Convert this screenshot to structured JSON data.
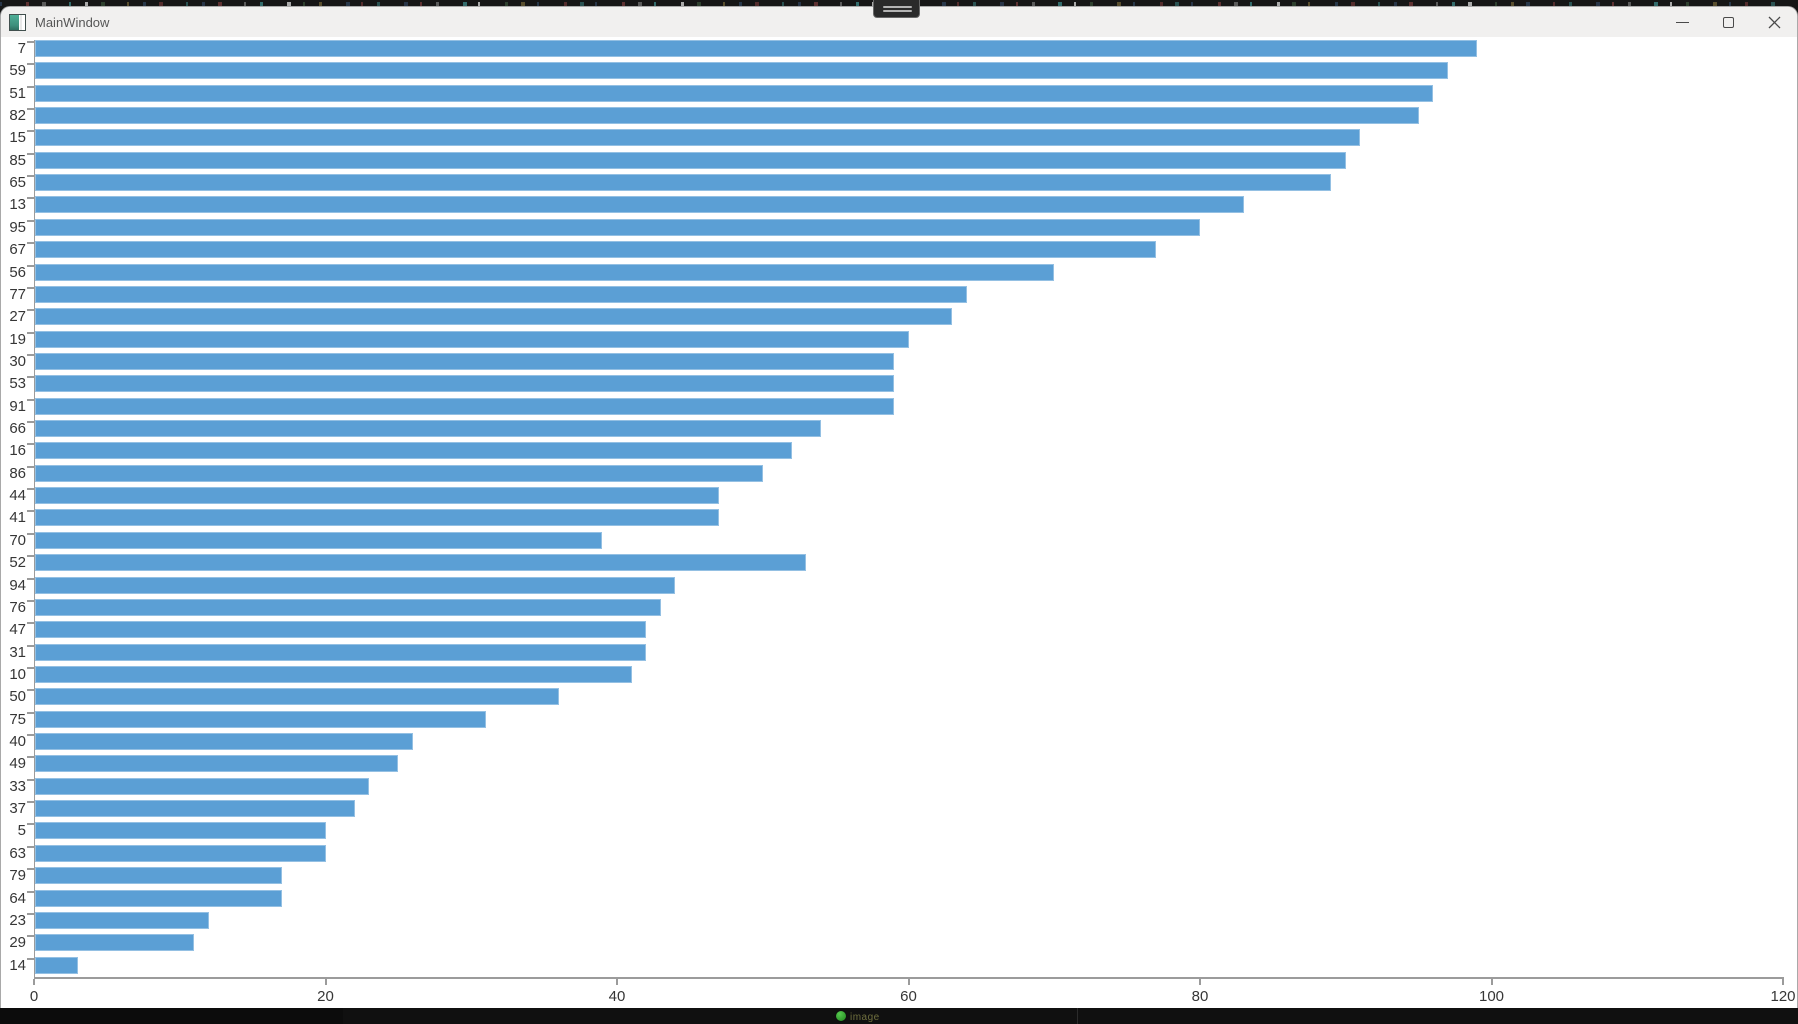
{
  "window": {
    "title": "MainWindow"
  },
  "taskbar": {
    "partial_text": "image"
  },
  "colors": {
    "bar": "#5b9fd5",
    "axis": "#9b9b9b",
    "titlebar_bg": "#f1f0ef",
    "plot_bg": "#ffffff",
    "tray_dot": "#2f9a2c"
  },
  "chart_data": {
    "type": "bar",
    "orientation": "horizontal",
    "title": "",
    "xlabel": "",
    "ylabel": "",
    "grid": false,
    "legend": null,
    "xlim": [
      0,
      120
    ],
    "x_ticks": [
      0,
      20,
      40,
      60,
      80,
      100,
      120
    ],
    "categories": [
      "7",
      "59",
      "51",
      "82",
      "15",
      "85",
      "65",
      "13",
      "95",
      "67",
      "56",
      "77",
      "27",
      "19",
      "30",
      "53",
      "91",
      "66",
      "16",
      "86",
      "44",
      "41",
      "70",
      "52",
      "94",
      "76",
      "47",
      "31",
      "10",
      "50",
      "75",
      "40",
      "49",
      "33",
      "37",
      "5",
      "63",
      "79",
      "64",
      "23",
      "29",
      "14"
    ],
    "values": [
      99,
      97,
      96,
      95,
      91,
      90,
      89,
      83,
      80,
      77,
      70,
      64,
      63,
      60,
      59,
      59,
      59,
      54,
      52,
      50,
      47,
      47,
      39,
      53,
      44,
      43,
      42,
      42,
      41,
      36,
      31,
      26,
      25,
      23,
      22,
      20,
      20,
      17,
      17,
      12,
      11,
      3
    ]
  }
}
